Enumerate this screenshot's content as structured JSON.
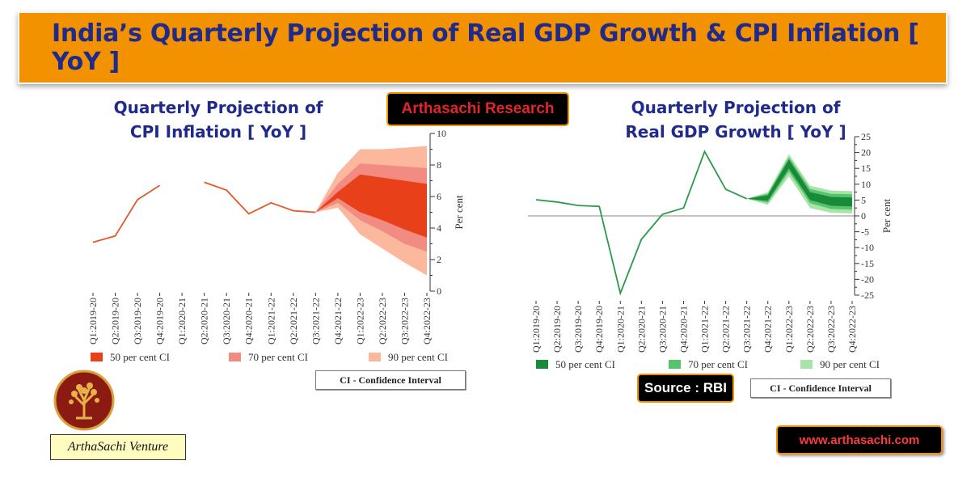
{
  "header": {
    "title": "India’s Quarterly Projection of Real GDP Growth & CPI Inflation [ YoY ]"
  },
  "badges": {
    "research": "Arthasachi Research",
    "source": "Source : RBI",
    "website": "www.arthasachi.com",
    "venture": "ArthaSachi Venture",
    "ci_note": "CI - Confidence Interval"
  },
  "colors": {
    "banner": "#f39200",
    "title_text": "#1f2a8a",
    "cpi_line": "#e05a2b",
    "gdp_line": "#2a9a4a"
  },
  "chart_data": [
    {
      "type": "line",
      "title_line1": "Quarterly Projection of",
      "title_line2": "CPI Inflation [ YoY ]",
      "ylabel": "Per cent",
      "ylim": [
        0,
        10
      ],
      "yticks": [
        0,
        2,
        4,
        6,
        8,
        10
      ],
      "categories": [
        "Q1:2019-20",
        "Q2:2019-20",
        "Q3:2019-20",
        "Q4:2019-20",
        "Q1:2020-21",
        "Q2:2020-21",
        "Q3:2020-21",
        "Q4:2020-21",
        "Q1:2021-22",
        "Q2:2021-22",
        "Q3:2021-22",
        "Q4:2021-22",
        "Q1:2022-23",
        "Q2:2022-23",
        "Q3:2022-23",
        "Q4:2022-23"
      ],
      "series": [
        {
          "values": [
            3.1,
            3.5,
            5.8,
            6.7,
            null,
            6.9,
            6.4,
            4.9,
            5.6,
            5.1,
            5.0,
            6.1,
            7.4,
            7.2,
            7.0,
            6.8
          ]
        }
      ],
      "fan": {
        "start_index": 10,
        "ci90": {
          "upper": [
            5.0,
            7.5,
            9.0,
            9.0,
            9.1,
            9.2
          ],
          "lower": [
            5.0,
            5.3,
            3.6,
            2.7,
            1.8,
            1.0
          ]
        },
        "ci70": {
          "upper": [
            5.0,
            6.8,
            8.1,
            8.0,
            7.9,
            7.8
          ],
          "lower": [
            5.0,
            5.6,
            4.5,
            3.8,
            3.0,
            2.5
          ]
        },
        "ci50": {
          "upper": [
            5.0,
            6.3,
            7.4,
            7.2,
            7.0,
            6.8
          ],
          "lower": [
            5.0,
            5.9,
            5.0,
            4.5,
            3.9,
            3.4
          ]
        }
      },
      "legend": [
        {
          "label": "50 per cent CI",
          "color": "#e8411a"
        },
        {
          "label": "70 per cent CI",
          "color": "#f28c82"
        },
        {
          "label": "90 per cent CI",
          "color": "#fbb89d"
        }
      ]
    },
    {
      "type": "line",
      "title_line1": "Quarterly Projection of",
      "title_line2": "Real GDP Growth [ YoY ]",
      "ylabel": "Per cent",
      "ylim": [
        -25,
        25
      ],
      "yticks": [
        -25,
        -20,
        -15,
        -10,
        -5,
        0,
        5,
        10,
        15,
        20,
        25
      ],
      "categories": [
        "Q1:2019-20",
        "Q2:2019-20",
        "Q3:2019-20",
        "Q4:2019-20",
        "Q1:2020-21",
        "Q2:2020-21",
        "Q3:2020-21",
        "Q4:2020-21",
        "Q1:2021-22",
        "Q2:2021-22",
        "Q3:2021-22",
        "Q4:2021-22",
        "Q1:2022-23",
        "Q2:2022-23",
        "Q3:2022-23",
        "Q4:2022-23"
      ],
      "series": [
        {
          "values": [
            5.1,
            4.4,
            3.3,
            3.0,
            -24.4,
            -7.4,
            0.5,
            2.5,
            20.3,
            8.4,
            5.4,
            6.0,
            17.2,
            7.0,
            4.9,
            4.5
          ]
        }
      ],
      "fan": {
        "start_index": 10,
        "ci90": {
          "upper": [
            5.4,
            7.5,
            19.5,
            9.5,
            8.0,
            7.8
          ],
          "lower": [
            5.4,
            3.5,
            12.5,
            2.5,
            1.0,
            0.8
          ]
        },
        "ci70": {
          "upper": [
            5.4,
            7.0,
            18.5,
            8.5,
            7.0,
            6.8
          ],
          "lower": [
            5.4,
            4.2,
            14.0,
            4.0,
            2.2,
            2.0
          ]
        },
        "ci50": {
          "upper": [
            5.4,
            6.5,
            17.8,
            7.5,
            6.0,
            5.8
          ],
          "lower": [
            5.4,
            4.8,
            15.0,
            5.0,
            3.2,
            3.0
          ]
        }
      },
      "legend": [
        {
          "label": "50 per cent CI",
          "color": "#1a8a3a"
        },
        {
          "label": "70 per cent CI",
          "color": "#56c46c"
        },
        {
          "label": "90 per cent CI",
          "color": "#a8e3a8"
        }
      ]
    }
  ]
}
